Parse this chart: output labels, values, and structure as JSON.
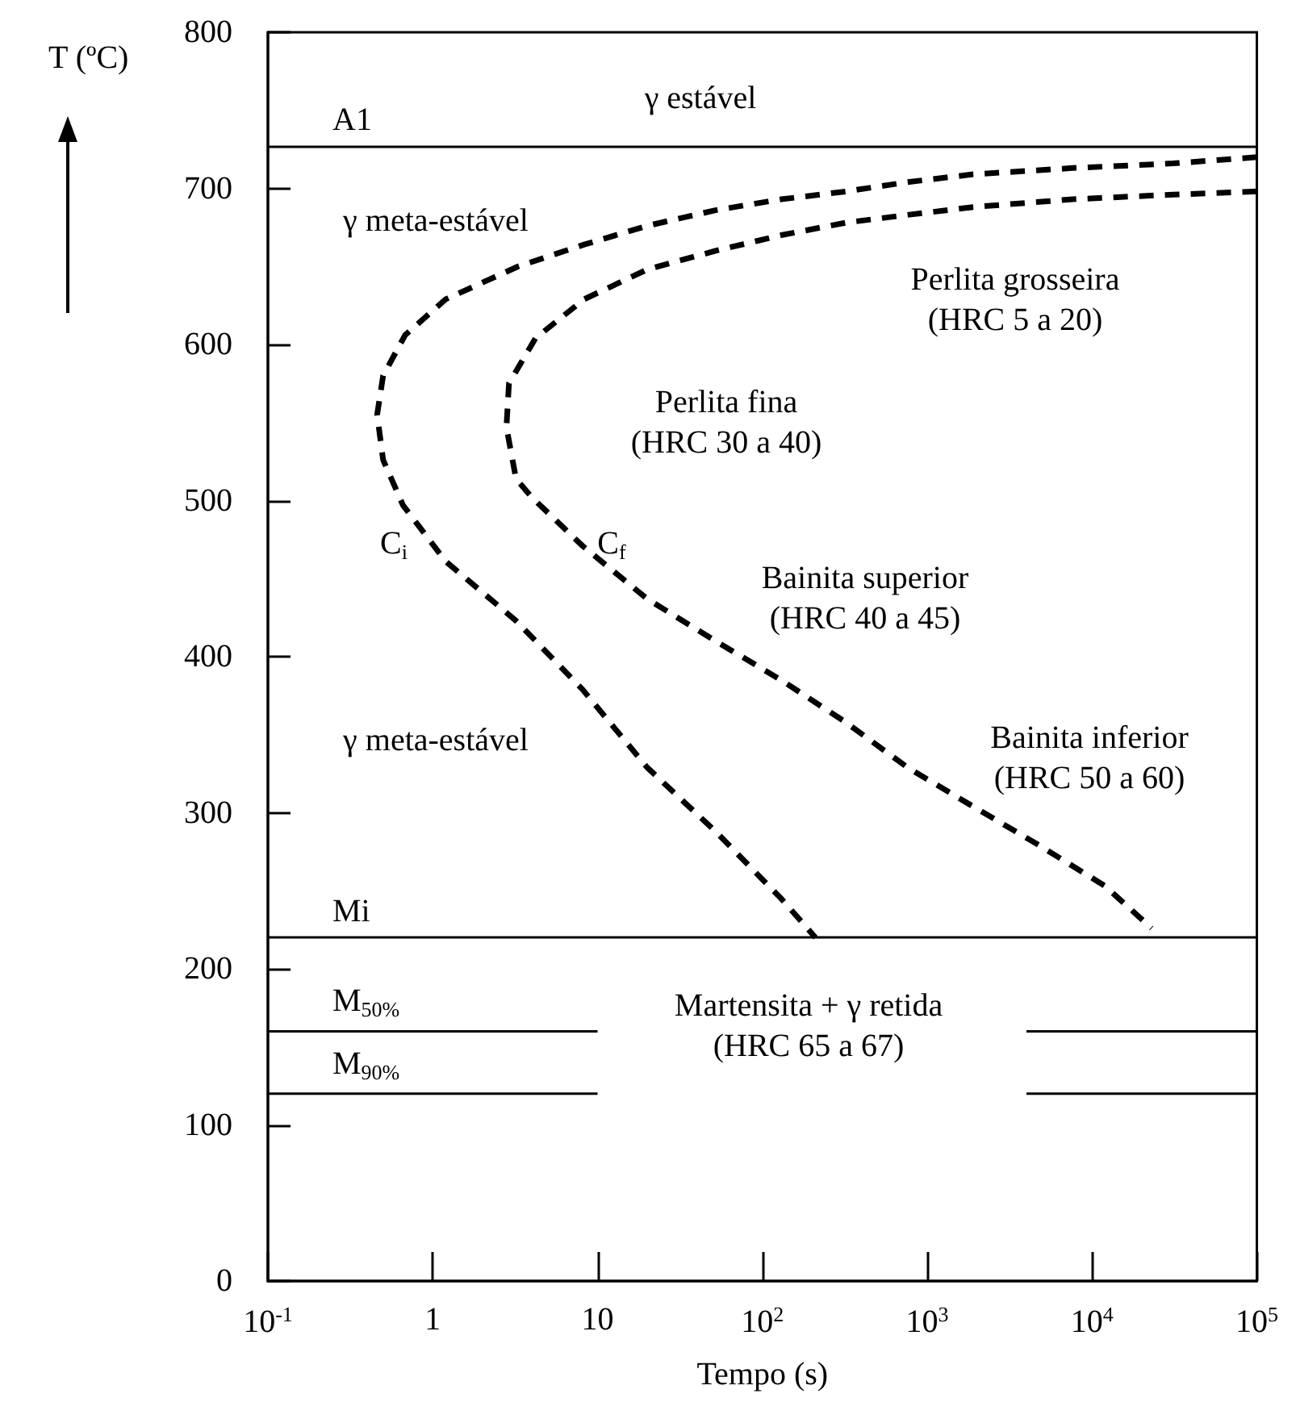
{
  "chart_data": {
    "type": "line",
    "xlabel": "Tempo (s)",
    "ylabel": "T (ºC)",
    "log": "x",
    "xlim": [
      0.1,
      100000
    ],
    "ylim": [
      0,
      800
    ],
    "xticks": [
      {
        "value": 0.1,
        "label": "10$^{-1}$"
      },
      1,
      10,
      {
        "value": 100,
        "label": "10$^{2}$"
      },
      {
        "value": 1000,
        "label": "10$^{3}$"
      },
      {
        "value": 10000,
        "label": "10$^{4}$"
      },
      {
        "value": 100000,
        "label": "10$^{5}$"
      }
    ],
    "yticks": [
      0,
      100,
      200,
      300,
      400,
      500,
      600,
      700,
      800
    ],
    "line_style": "dashed",
    "marker": "none",
    "series": [
      {
        "color": "#000000",
        "x": [
          100000,
          31000,
          7600,
          1900,
          760,
          320,
          130,
          52,
          20,
          8.3,
          3.3,
          1.2,
          0.68,
          0.5,
          0.46,
          0.5,
          0.66,
          1.2,
          3.2,
          8.1,
          20,
          52,
          130,
          210
        ],
        "values": [
          720,
          716,
          713,
          709,
          704,
          698,
          693,
          686,
          676,
          664,
          650,
          629,
          606,
          580,
          555,
          526,
          497,
          461,
          423,
          379,
          329,
          288,
          245,
          220
        ]
      },
      {
        "color": "#000000",
        "x": [
          100000,
          31000,
          7600,
          1900,
          760,
          320,
          130,
          52,
          20,
          8.3,
          4.2,
          2.9,
          2.8,
          3.2,
          4.0,
          8.1,
          20,
          52,
          130,
          320,
          760,
          1900,
          4800,
          12000,
          23000
        ],
        "values": [
          698,
          696,
          693,
          688,
          683,
          678,
          670,
          660,
          648,
          629,
          604,
          575,
          547,
          514,
          502,
          471,
          437,
          410,
          385,
          358,
          329,
          304,
          279,
          253,
          226
        ]
      },
      {
        "name": "M$_{50%}$",
        "color": "#000000",
        "line_style": "solid",
        "x": [
          0.1,
          10,
          100,
          4000,
          100000
        ],
        "values": [
          160,
          160,
          null,
          160,
          160
        ]
      },
      {
        "name": "M$_{90%}$",
        "color": "#000000",
        "line_style": "solid",
        "x": [
          0.1,
          10,
          100,
          4000,
          100000
        ],
        "values": [
          120,
          120,
          null,
          120,
          120
        ]
      }
    ],
    "ref_lines": [
      {
        "axis": "y",
        "value": 727,
        "label": "A1",
        "color": "#000000",
        "line_style": "solid"
      },
      {
        "axis": "y",
        "value": 220,
        "label": "Mi",
        "color": "#000000",
        "line_style": "solid"
      }
    ],
    "annotations": [
      "γ estável",
      "γ meta-estável",
      "Perlita grosseira\n(HRC 5 a 20)",
      "Perlita fina\n(HRC 30 a 40)",
      "C$_{i}$",
      "C$_{f}$",
      "Bainita superior\n(HRC 40 a 45)",
      "γ meta-estável",
      "Bainita inferior\n(HRC 50 a 60)",
      "Martensita + γ retida\n(HRC 65 a 67)"
    ]
  }
}
